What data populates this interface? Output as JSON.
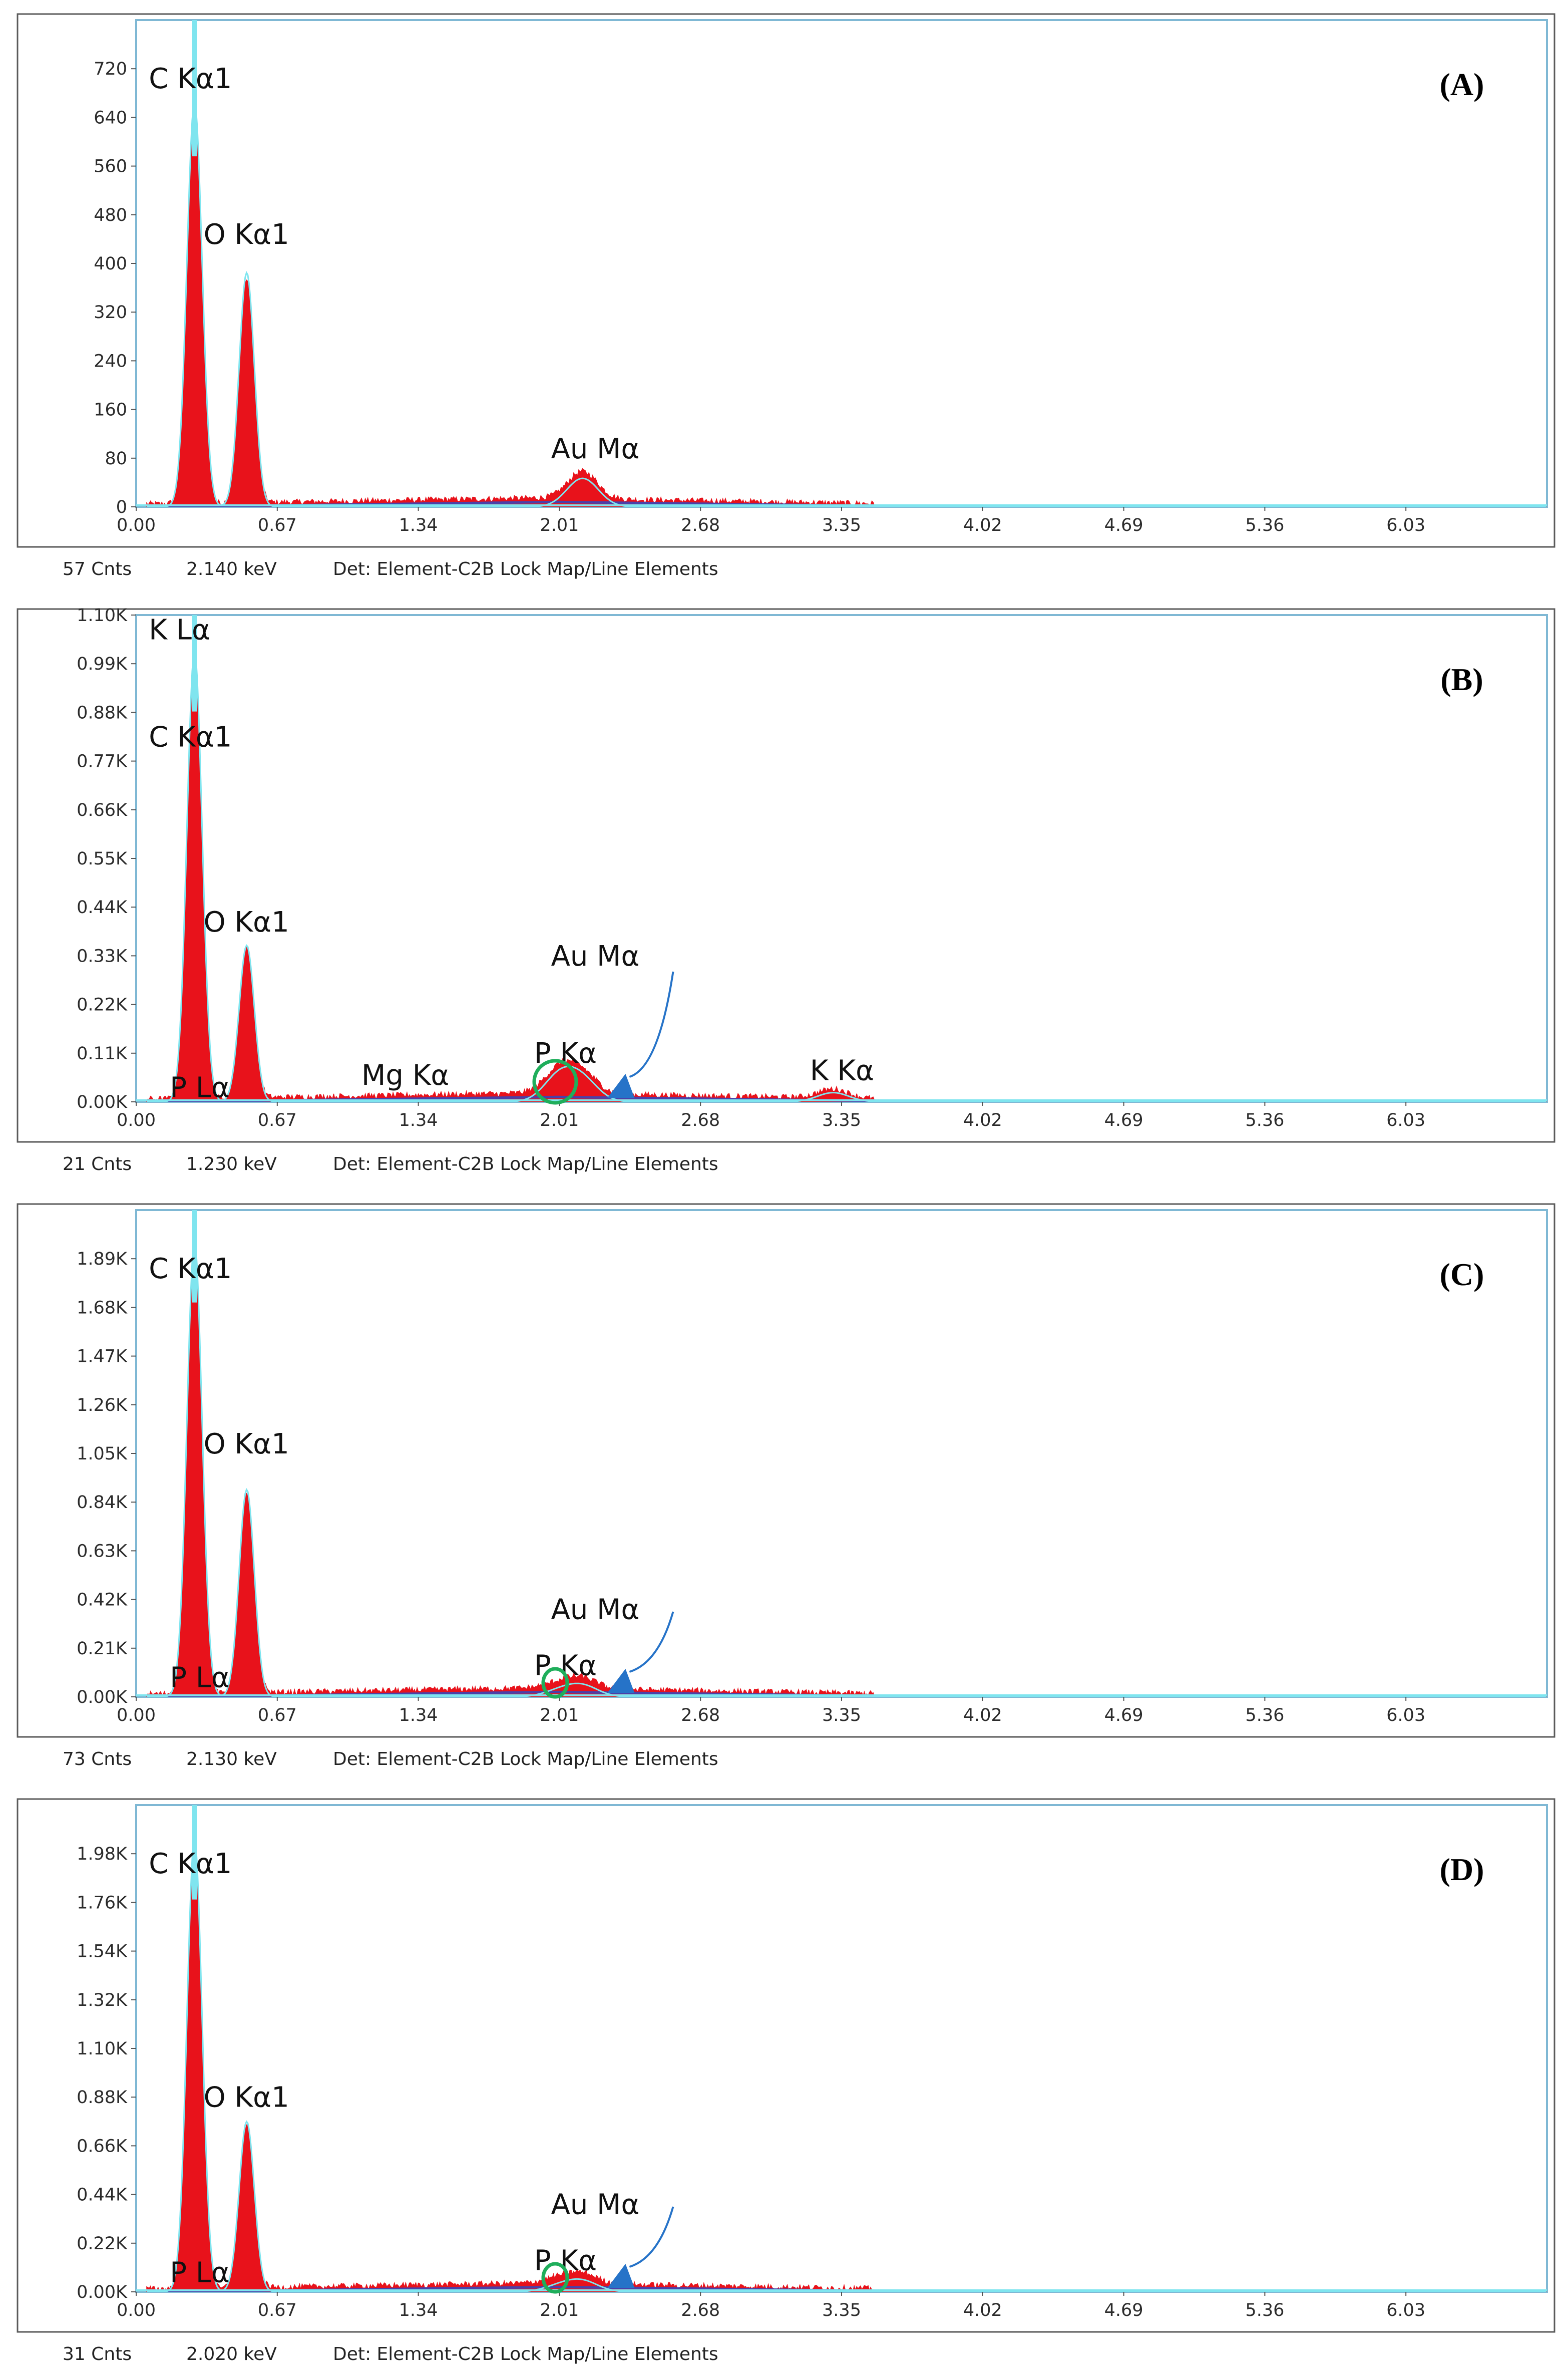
{
  "colors": {
    "frame": "#5a5a5a",
    "plot_border": "#7fb8d4",
    "spectrum_fill": "#e8121b",
    "background_trace": "#4b3fa8",
    "cyan_outline": "#7fe5ef",
    "circle": "#1fae5b",
    "arrow": "#2673c8"
  },
  "x_ticks": [
    "0.00",
    "0.67",
    "1.34",
    "2.01",
    "2.68",
    "3.35",
    "4.02",
    "4.69",
    "5.36",
    "6.03"
  ],
  "panels": [
    {
      "letter": "(A)",
      "y_ticks": [
        "0",
        "80",
        "160",
        "240",
        "320",
        "400",
        "480",
        "560",
        "640",
        "720"
      ],
      "labels": [
        {
          "text": "C  Kα1",
          "kev": 0.06,
          "frac": 0.86
        },
        {
          "text": "O  Kα1",
          "kev": 0.32,
          "frac": 0.54
        },
        {
          "text": "Au Mα",
          "kev": 1.97,
          "frac": 0.1
        }
      ],
      "status": {
        "counts": "57 Cnts",
        "energy": "2.140 keV",
        "detector": "Det: Element-C2B Lock Map/Line Elements"
      },
      "chart_data": {
        "type": "area",
        "xlabel": "",
        "ylabel": "",
        "xlim": [
          0,
          6.7
        ],
        "ylim": [
          0,
          800
        ],
        "peaks": [
          {
            "label": "C Kα1",
            "x": 0.277,
            "y": 640
          },
          {
            "label": "O Kα1",
            "x": 0.525,
            "y": 370
          },
          {
            "label": "Au Mα",
            "x": 2.12,
            "y": 45
          }
        ],
        "max_counts": 800
      }
    },
    {
      "letter": "(B)",
      "y_ticks": [
        "0.00K",
        "0.11K",
        "0.22K",
        "0.33K",
        "0.44K",
        "0.55K",
        "0.66K",
        "0.77K",
        "0.88K",
        "0.99K",
        "1.10K"
      ],
      "labels": [
        {
          "text": "K  Lα",
          "kev": 0.06,
          "frac": 0.95
        },
        {
          "text": "C  Kα1",
          "kev": 0.06,
          "frac": 0.73
        },
        {
          "text": "O  Kα1",
          "kev": 0.32,
          "frac": 0.35
        },
        {
          "text": "P  Lα",
          "kev": 0.16,
          "frac": 0.01
        },
        {
          "text": "Mg Kα",
          "kev": 1.07,
          "frac": 0.035
        },
        {
          "text": "P  Kα",
          "kev": 1.89,
          "frac": 0.08
        },
        {
          "text": "Au Mα",
          "kev": 1.97,
          "frac": 0.28
        },
        {
          "text": "K  Kα",
          "kev": 3.2,
          "frac": 0.045
        }
      ],
      "status": {
        "counts": "21 Cnts",
        "energy": "1.230 keV",
        "detector": "Det: Element-C2B Lock Map/Line Elements"
      },
      "chart_data": {
        "type": "area",
        "xlabel": "",
        "ylabel": "",
        "xlim": [
          0,
          6.7
        ],
        "ylim": [
          0,
          1100
        ],
        "peaks": [
          {
            "label": "C Kα1",
            "x": 0.277,
            "y": 980
          },
          {
            "label": "O Kα1",
            "x": 0.525,
            "y": 340
          },
          {
            "label": "P Kα",
            "x": 2.01,
            "y": 55
          },
          {
            "label": "Au Mα",
            "x": 2.12,
            "y": 45
          },
          {
            "label": "K Kα",
            "x": 3.31,
            "y": 20
          }
        ],
        "max_counts": 1100
      }
    },
    {
      "letter": "(C)",
      "y_ticks": [
        "0.00K",
        "0.21K",
        "0.42K",
        "0.63K",
        "0.84K",
        "1.05K",
        "1.26K",
        "1.47K",
        "1.68K",
        "1.89K"
      ],
      "labels": [
        {
          "text": "C  Kα1",
          "kev": 0.06,
          "frac": 0.86
        },
        {
          "text": "O  Kα1",
          "kev": 0.32,
          "frac": 0.5
        },
        {
          "text": "P  Lα",
          "kev": 0.16,
          "frac": 0.02
        },
        {
          "text": "P  Kα",
          "kev": 1.89,
          "frac": 0.045
        },
        {
          "text": "Au Mα",
          "kev": 1.97,
          "frac": 0.16
        }
      ],
      "status": {
        "counts": "73 Cnts",
        "energy": "2.130 keV",
        "detector": "Det: Element-C2B Lock Map/Line Elements"
      },
      "chart_data": {
        "type": "area",
        "xlabel": "",
        "ylabel": "",
        "xlim": [
          0,
          6.7
        ],
        "ylim": [
          0,
          2100
        ],
        "peaks": [
          {
            "label": "C Kα1",
            "x": 0.277,
            "y": 1890
          },
          {
            "label": "O Kα1",
            "x": 0.525,
            "y": 860
          },
          {
            "label": "P Kα",
            "x": 2.01,
            "y": 25
          },
          {
            "label": "Au Mα",
            "x": 2.12,
            "y": 45
          }
        ],
        "max_counts": 2100
      }
    },
    {
      "letter": "(D)",
      "y_ticks": [
        "0.00K",
        "0.22K",
        "0.44K",
        "0.66K",
        "0.88K",
        "1.10K",
        "1.32K",
        "1.54K",
        "1.76K",
        "1.98K"
      ],
      "labels": [
        {
          "text": "C  Kα1",
          "kev": 0.06,
          "frac": 0.86
        },
        {
          "text": "O  Kα1",
          "kev": 0.32,
          "frac": 0.38
        },
        {
          "text": "P  Lα",
          "kev": 0.16,
          "frac": 0.02
        },
        {
          "text": "P  Kα",
          "kev": 1.89,
          "frac": 0.045
        },
        {
          "text": "Au Mα",
          "kev": 1.97,
          "frac": 0.16
        }
      ],
      "status": {
        "counts": "31 Cnts",
        "energy": "2.020 keV",
        "detector": "Det: Element-C2B Lock Map/Line Elements"
      },
      "chart_data": {
        "type": "area",
        "xlabel": "",
        "ylabel": "",
        "xlim": [
          0,
          6.7
        ],
        "ylim": [
          0,
          2200
        ],
        "peaks": [
          {
            "label": "C Kα1",
            "x": 0.277,
            "y": 1970
          },
          {
            "label": "O Kα1",
            "x": 0.525,
            "y": 740
          },
          {
            "label": "P Kα",
            "x": 2.01,
            "y": 25
          },
          {
            "label": "Au Mα",
            "x": 2.12,
            "y": 45
          }
        ],
        "max_counts": 2200
      }
    }
  ]
}
